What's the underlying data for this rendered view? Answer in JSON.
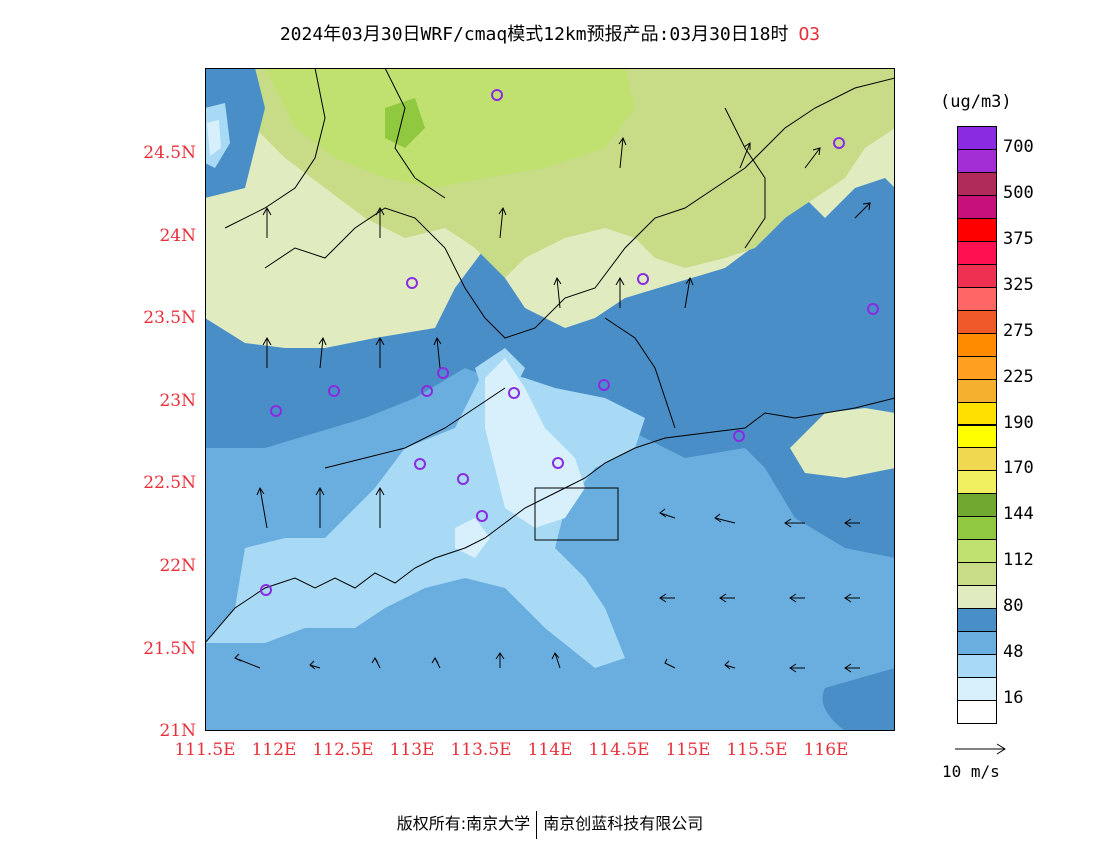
{
  "title": {
    "main": "2024年03月30日WRF/cmaq模式12km预报产品:03月30日18时",
    "pollutant": "O3"
  },
  "axes": {
    "y_labels": [
      "24.5N",
      "24N",
      "23.5N",
      "23N",
      "22.5N",
      "22N",
      "21.5N",
      "21N"
    ],
    "x_labels": [
      "111.5E",
      "112E",
      "112.5E",
      "113E",
      "113.5E",
      "114E",
      "114.5E",
      "115E",
      "115.5E",
      "116E"
    ]
  },
  "legend": {
    "unit": "(ug/m3)",
    "labels": [
      "700",
      "500",
      "375",
      "325",
      "275",
      "225",
      "190",
      "170",
      "144",
      "112",
      "80",
      "48",
      "16"
    ],
    "colors": [
      "#8a2be2",
      "#a42ed6",
      "#b02a5a",
      "#c8107a",
      "#ff0000",
      "#ff1050",
      "#f03050",
      "#ff6666",
      "#f05a28",
      "#ff8c00",
      "#ffa020",
      "#f5b030",
      "#ffe000",
      "#ffff00",
      "#f0d850",
      "#f0f060",
      "#70a830",
      "#90c840",
      "#c0e070",
      "#c8dc88",
      "#e0ecc0",
      "#4a8ec8",
      "#6aaee0",
      "#a8daf6",
      "#d8f0fc",
      "#ffffff"
    ]
  },
  "wind_reference": {
    "label": "10 m/s"
  },
  "footer": {
    "left": "版权所有:南京大学",
    "right": "南京创蓝科技有限公司"
  },
  "colors": {
    "label_red": "#e8303b",
    "station_marker": "#8a2be2"
  }
}
